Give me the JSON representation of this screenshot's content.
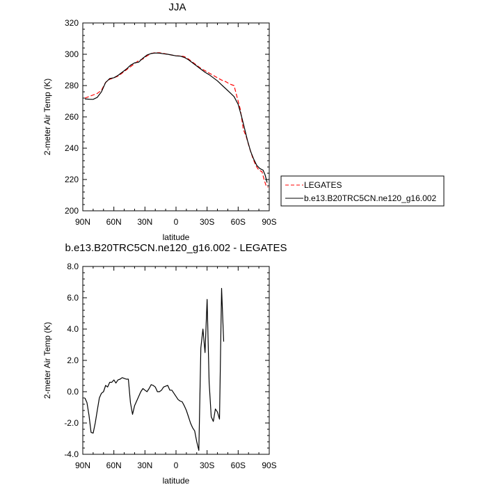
{
  "chart_data": [
    {
      "type": "line",
      "title": "JJA",
      "xlabel": "latitude",
      "ylabel": "2-meter Air Temp (K)",
      "xlim": [
        90,
        -90
      ],
      "ylim": [
        200,
        320
      ],
      "x_ticks": [
        90,
        60,
        30,
        0,
        -30,
        -60,
        -90
      ],
      "x_tick_labels": [
        "90N",
        "60N",
        "30N",
        "0",
        "30S",
        "60S",
        "90S"
      ],
      "y_ticks": [
        200,
        220,
        240,
        260,
        280,
        300,
        320
      ],
      "y_tick_labels": [
        "200",
        "220",
        "240",
        "260",
        "280",
        "300",
        "320"
      ],
      "legend_position": "right",
      "series": [
        {
          "name": "LEGATES",
          "color": "#ff0000",
          "dash": "dashed",
          "points": [
            [
              88,
              272
            ],
            [
              84,
              273
            ],
            [
              80,
              274
            ],
            [
              76,
              275
            ],
            [
              72,
              277
            ],
            [
              68,
              282
            ],
            [
              64,
              284
            ],
            [
              60,
              285
            ],
            [
              56,
              286
            ],
            [
              52,
              288
            ],
            [
              48,
              290
            ],
            [
              44,
              292
            ],
            [
              40,
              294
            ],
            [
              36,
              296
            ],
            [
              32,
              297
            ],
            [
              28,
              299
            ],
            [
              24,
              300.5
            ],
            [
              20,
              301
            ],
            [
              16,
              301
            ],
            [
              12,
              300.5
            ],
            [
              8,
              300
            ],
            [
              4,
              299.5
            ],
            [
              0,
              299
            ],
            [
              -4,
              299
            ],
            [
              -8,
              298.5
            ],
            [
              -12,
              297
            ],
            [
              -16,
              295
            ],
            [
              -20,
              293
            ],
            [
              -24,
              291
            ],
            [
              -28,
              289.5
            ],
            [
              -32,
              288
            ],
            [
              -36,
              286.5
            ],
            [
              -40,
              285
            ],
            [
              -44,
              283.5
            ],
            [
              -48,
              282.5
            ],
            [
              -52,
              281
            ],
            [
              -56,
              280
            ],
            [
              -58,
              275
            ],
            [
              -62,
              265
            ],
            [
              -65,
              252
            ],
            [
              -68,
              247
            ],
            [
              -71,
              240
            ],
            [
              -74,
              234
            ],
            [
              -77,
              229
            ],
            [
              -80,
              226
            ],
            [
              -83,
              225
            ],
            [
              -85,
              220
            ],
            [
              -87,
              216
            ],
            [
              -89,
              215
            ]
          ]
        },
        {
          "name": "b.e13.B20TRC5CN.ne120_g16.002",
          "color": "#000000",
          "dash": "solid",
          "points": [
            [
              88,
              271.5
            ],
            [
              84,
              271.3
            ],
            [
              80,
              271.2
            ],
            [
              76,
              272.5
            ],
            [
              72,
              276
            ],
            [
              68,
              282
            ],
            [
              64,
              284.5
            ],
            [
              60,
              285
            ],
            [
              56,
              286.5
            ],
            [
              52,
              288.5
            ],
            [
              48,
              290.5
            ],
            [
              44,
              293
            ],
            [
              40,
              294.5
            ],
            [
              36,
              295
            ],
            [
              32,
              297.5
            ],
            [
              28,
              299.5
            ],
            [
              24,
              300.5
            ],
            [
              20,
              300.8
            ],
            [
              16,
              300.7
            ],
            [
              12,
              300.3
            ],
            [
              8,
              300
            ],
            [
              4,
              299.5
            ],
            [
              0,
              299
            ],
            [
              -4,
              298.8
            ],
            [
              -8,
              298
            ],
            [
              -12,
              296.5
            ],
            [
              -16,
              294.5
            ],
            [
              -20,
              292.5
            ],
            [
              -24,
              290.5
            ],
            [
              -28,
              288.5
            ],
            [
              -32,
              287
            ],
            [
              -36,
              285
            ],
            [
              -40,
              283
            ],
            [
              -44,
              280.5
            ],
            [
              -48,
              278
            ],
            [
              -52,
              275.5
            ],
            [
              -56,
              273
            ],
            [
              -60,
              268
            ],
            [
              -63,
              261
            ],
            [
              -66,
              253
            ],
            [
              -69,
              245
            ],
            [
              -72,
              238
            ],
            [
              -75,
              233
            ],
            [
              -78,
              229
            ],
            [
              -81,
              227
            ],
            [
              -84,
              226
            ],
            [
              -86,
              223
            ],
            [
              -88,
              218
            ]
          ]
        }
      ]
    },
    {
      "type": "line",
      "title": "b.e13.B20TRC5CN.ne120_g16.002 - LEGATES",
      "xlabel": "latitude",
      "ylabel": "2-meter Air Temp (K)",
      "xlim": [
        90,
        -90
      ],
      "ylim": [
        -4.0,
        8.0
      ],
      "x_ticks": [
        90,
        60,
        30,
        0,
        -30,
        -60,
        -90
      ],
      "x_tick_labels": [
        "90N",
        "60N",
        "30N",
        "0",
        "30S",
        "60S",
        "90S"
      ],
      "y_ticks": [
        -4,
        -2,
        0,
        2,
        4,
        6,
        8
      ],
      "y_tick_labels": [
        "-4.0",
        "-2.0",
        "0.0",
        "2.0",
        "4.0",
        "6.0",
        "8.0"
      ],
      "series": [
        {
          "color": "#000000",
          "dash": "solid",
          "points": [
            [
              88,
              -0.4
            ],
            [
              86,
              -0.7
            ],
            [
              84,
              -1.5
            ],
            [
              82,
              -2.6
            ],
            [
              80,
              -2.65
            ],
            [
              78,
              -2.0
            ],
            [
              76,
              -1.2
            ],
            [
              74,
              -0.4
            ],
            [
              72,
              -0.1
            ],
            [
              70,
              0.0
            ],
            [
              68,
              0.4
            ],
            [
              66,
              0.3
            ],
            [
              64,
              0.6
            ],
            [
              62,
              0.6
            ],
            [
              60,
              0.75
            ],
            [
              58,
              0.55
            ],
            [
              56,
              0.75
            ],
            [
              54,
              0.8
            ],
            [
              52,
              0.9
            ],
            [
              50,
              0.85
            ],
            [
              48,
              0.8
            ],
            [
              46,
              0.8
            ],
            [
              44,
              -0.7
            ],
            [
              42,
              -1.45
            ],
            [
              40,
              -0.9
            ],
            [
              38,
              -0.6
            ],
            [
              36,
              -0.3
            ],
            [
              34,
              0.0
            ],
            [
              32,
              0.2
            ],
            [
              30,
              0.1
            ],
            [
              28,
              0.0
            ],
            [
              26,
              0.2
            ],
            [
              24,
              0.45
            ],
            [
              22,
              0.4
            ],
            [
              20,
              0.3
            ],
            [
              18,
              0.0
            ],
            [
              16,
              0.0
            ],
            [
              14,
              0.1
            ],
            [
              12,
              0.3
            ],
            [
              10,
              0.35
            ],
            [
              8,
              0.4
            ],
            [
              6,
              0.1
            ],
            [
              4,
              0.1
            ],
            [
              2,
              -0.1
            ],
            [
              0,
              -0.3
            ],
            [
              -2,
              -0.5
            ],
            [
              -4,
              -0.6
            ],
            [
              -6,
              -0.65
            ],
            [
              -8,
              -0.9
            ],
            [
              -10,
              -1.2
            ],
            [
              -12,
              -1.6
            ],
            [
              -14,
              -2.0
            ],
            [
              -16,
              -2.3
            ],
            [
              -18,
              -2.5
            ],
            [
              -20,
              -3.2
            ],
            [
              -22,
              -3.75
            ],
            [
              -24,
              2.8
            ],
            [
              -26,
              4.0
            ],
            [
              -28,
              2.5
            ],
            [
              -30,
              5.9
            ],
            [
              -32,
              0.6
            ],
            [
              -34,
              -1.6
            ],
            [
              -36,
              -1.9
            ],
            [
              -38,
              -1.1
            ],
            [
              -40,
              -1.3
            ],
            [
              -42,
              -1.75
            ],
            [
              -44,
              6.6
            ],
            [
              -46,
              3.2
            ]
          ]
        }
      ]
    }
  ]
}
